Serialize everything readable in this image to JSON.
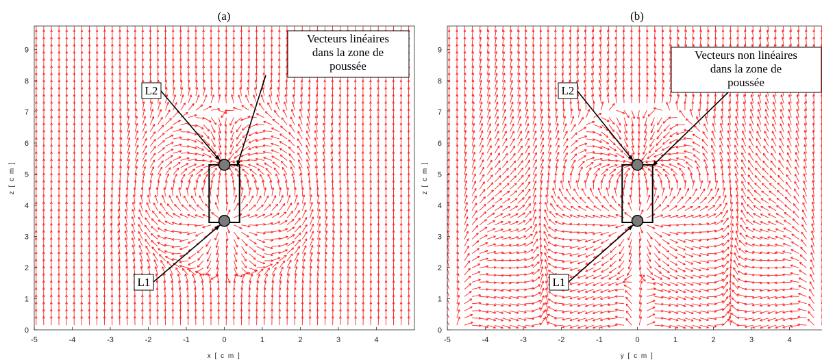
{
  "chart_data": [
    {
      "type": "quiver",
      "title": "(a)",
      "xlabel": "x [ c m ]",
      "ylabel": "z [ c m ]",
      "xlim": [
        -5,
        5
      ],
      "ylim": [
        0,
        9.9
      ],
      "xticks": [
        "-5",
        "-4",
        "-3",
        "-2",
        "-1",
        "0",
        "1",
        "2",
        "3",
        "4"
      ],
      "yticks": [
        "0",
        "1",
        "2",
        "3",
        "4",
        "5",
        "6",
        "7",
        "8",
        "9"
      ],
      "vector_color": "#ff2020",
      "magnets": [
        {
          "label": "L1",
          "x": 0,
          "z": 3.5
        },
        {
          "label": "L2",
          "x": 0,
          "z": 5.3
        }
      ],
      "magnet_box": {
        "x0": -0.4,
        "x1": 0.4,
        "z0": 3.45,
        "z1": 5.3
      },
      "annotation": [
        "Vecteurs linéaires",
        "dans la zone de",
        "poussée"
      ],
      "field_mode": "linear"
    },
    {
      "type": "quiver",
      "title": "(b)",
      "xlabel": "y [ c m ]",
      "ylabel": "z [ c m ]",
      "xlim": [
        -5,
        5
      ],
      "ylim": [
        0,
        9.9
      ],
      "xticks": [
        "-5",
        "-4",
        "-3",
        "-2",
        "-1",
        "0",
        "1",
        "2",
        "3",
        "4"
      ],
      "yticks": [
        "0",
        "1",
        "2",
        "3",
        "4",
        "5",
        "6",
        "7",
        "8",
        "9"
      ],
      "vector_color": "#ff2020",
      "magnets": [
        {
          "label": "L1",
          "x": 0,
          "z": 3.5
        },
        {
          "label": "L2",
          "x": 0,
          "z": 5.3
        }
      ],
      "magnet_box": {
        "x0": -0.4,
        "x1": 0.4,
        "z0": 3.45,
        "z1": 5.3
      },
      "annotation": [
        "Vecteurs non linéaires",
        "dans la zone de",
        "poussée"
      ],
      "field_mode": "nonlinear"
    }
  ]
}
